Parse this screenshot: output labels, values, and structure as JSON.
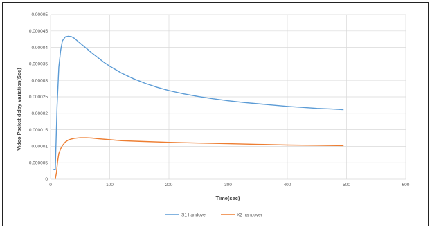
{
  "chart_data": {
    "type": "line",
    "title": "",
    "xlabel": "Time(sec)",
    "ylabel": "Video Packet delay variation(Sec)",
    "xlim": [
      0,
      600
    ],
    "ylim": [
      0,
      5e-05
    ],
    "xticks": [
      "0",
      "100",
      "200",
      "300",
      "400",
      "500",
      "600"
    ],
    "yticks": [
      "0",
      "0.000005",
      "0.00001",
      "0.000015",
      "0.00002",
      "0.000025",
      "0.00003",
      "0.000035",
      "0.00004",
      "0.000045",
      "0.00005"
    ],
    "grid": true,
    "legend_position": "bottom",
    "series": [
      {
        "name": "S1 handover",
        "color": "#5b9bd5",
        "x": [
          5,
          8,
          11,
          14,
          17,
          20,
          25,
          30,
          35,
          40,
          50,
          60,
          70,
          80,
          90,
          100,
          120,
          140,
          160,
          180,
          200,
          225,
          250,
          275,
          300,
          325,
          350,
          375,
          400,
          425,
          450,
          475,
          495
        ],
        "y": [
          3e-06,
          3e-06,
          2.2e-05,
          3.4e-05,
          3.9e-05,
          4.2e-05,
          4.32e-05,
          4.34e-05,
          4.33e-05,
          4.28e-05,
          4.13e-05,
          3.98e-05,
          3.83e-05,
          3.69e-05,
          3.55e-05,
          3.43e-05,
          3.22e-05,
          3.05e-05,
          2.91e-05,
          2.79e-05,
          2.69e-05,
          2.59e-05,
          2.51e-05,
          2.44e-05,
          2.38e-05,
          2.33e-05,
          2.29e-05,
          2.25e-05,
          2.21e-05,
          2.18e-05,
          2.15e-05,
          2.13e-05,
          2.11e-05
        ]
      },
      {
        "name": "X2 handover",
        "color": "#ed7d31",
        "x": [
          8,
          10,
          12,
          14,
          17,
          20,
          25,
          30,
          35,
          40,
          50,
          60,
          70,
          80,
          100,
          120,
          150,
          200,
          250,
          300,
          350,
          400,
          450,
          495
        ],
        "y": [
          0,
          2e-06,
          5.5e-06,
          7.8e-06,
          9.2e-06,
          1.02e-05,
          1.13e-05,
          1.19e-05,
          1.22e-05,
          1.24e-05,
          1.26e-05,
          1.26e-05,
          1.25e-05,
          1.23e-05,
          1.2e-05,
          1.17e-05,
          1.15e-05,
          1.12e-05,
          1.1e-05,
          1.08e-05,
          1.06e-05,
          1.04e-05,
          1.03e-05,
          1.02e-05
        ]
      }
    ]
  }
}
